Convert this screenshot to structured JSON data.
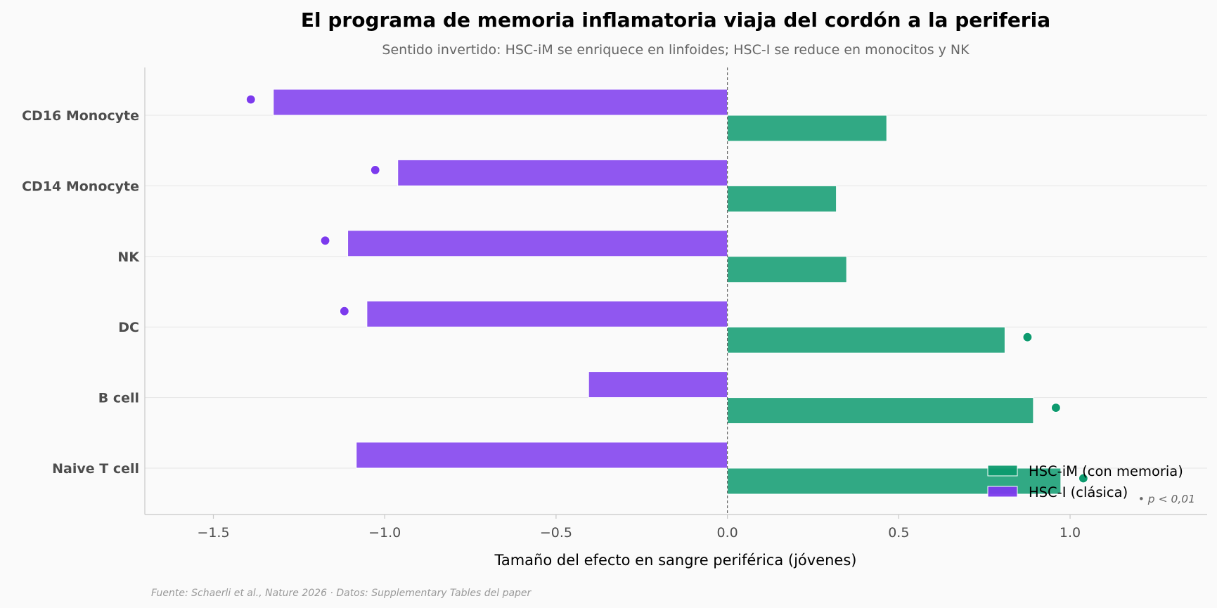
{
  "chart_data": {
    "type": "bar",
    "orientation": "horizontal",
    "title": "El programa de memoria inflamatoria viaja del cordón a la periferia",
    "subtitle": "Sentido invertido: HSC-iM se enriquece en linfoides; HSC-I se reduce en monocitos y NK",
    "xlabel": "Tamaño del efecto en sangre periférica (jóvenes)",
    "ylabel": "",
    "xlim": [
      -1.7,
      1.4
    ],
    "xticks": [
      -1.5,
      -1.0,
      -0.5,
      0.0,
      0.5,
      1.0
    ],
    "xtick_labels": [
      "−1.5",
      "−1.0",
      "−0.5",
      "0.0",
      "0.5",
      "1.0"
    ],
    "categories": [
      "CD16 Monocyte",
      "CD14 Monocyte",
      "NK",
      "DC",
      "B cell",
      "Naive T cell"
    ],
    "series": [
      {
        "name": "HSC-iM (con memoria)",
        "color": "#0d9a6e",
        "values": [
          0.465,
          0.318,
          0.348,
          0.81,
          0.893,
          0.973
        ],
        "significant": [
          false,
          false,
          false,
          true,
          true,
          true
        ]
      },
      {
        "name": "HSC-I (clásica)",
        "color": "#7c3aed",
        "values": [
          -1.325,
          -0.962,
          -1.108,
          -1.052,
          -0.405,
          -1.083
        ],
        "significant": [
          true,
          true,
          true,
          true,
          false,
          false
        ]
      }
    ],
    "significance_note": "• p < 0,01",
    "zero_line": "dashed",
    "grid": "horizontal",
    "legend_position": "lower-right",
    "source": "Fuente: Schaerli et al., Nature 2026 · Datos: Supplementary Tables del paper"
  }
}
